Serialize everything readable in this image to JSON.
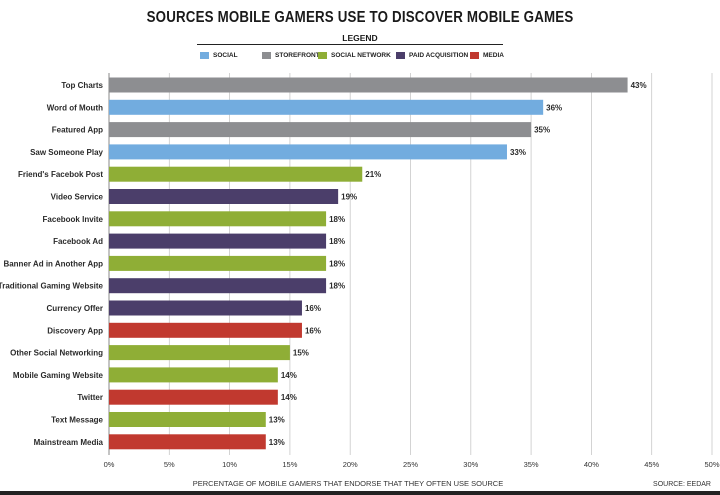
{
  "chart_data": {
    "type": "bar",
    "orientation": "horizontal",
    "title": "SOURCES MOBILE GAMERS USE TO DISCOVER MOBILE GAMES",
    "legend_title": "LEGEND",
    "legend_placement": "top",
    "xlabel": "PERCENTAGE OF MOBILE GAMERS THAT ENDORSE THAT THEY OFTEN USE SOURCE",
    "source": "SOURCE: EEDAR",
    "xlim": [
      0,
      50
    ],
    "xticks": [
      "0%",
      "5%",
      "10%",
      "15%",
      "20%",
      "25%",
      "30%",
      "35%",
      "40%",
      "45%",
      "50%"
    ],
    "grid": true,
    "series": [
      {
        "name": "SOCIAL",
        "color": "#72acdf"
      },
      {
        "name": "STOREFRONT",
        "color": "#8d8e91"
      },
      {
        "name": "SOCIAL NETWORK",
        "color": "#8fae36"
      },
      {
        "name": "PAID ACQUISITION",
        "color": "#4b3e6a"
      },
      {
        "name": "MEDIA",
        "color": "#c1392f"
      }
    ],
    "bars": [
      {
        "label": "Top Charts",
        "value": 43,
        "value_label": "43%",
        "series": "STOREFRONT"
      },
      {
        "label": "Word of Mouth",
        "value": 36,
        "value_label": "36%",
        "series": "SOCIAL"
      },
      {
        "label": "Featured App",
        "value": 35,
        "value_label": "35%",
        "series": "STOREFRONT"
      },
      {
        "label": "Saw Someone Play",
        "value": 33,
        "value_label": "33%",
        "series": "SOCIAL"
      },
      {
        "label": "Friend's Facebok Post",
        "value": 21,
        "value_label": "21%",
        "series": "SOCIAL NETWORK"
      },
      {
        "label": "Video Service",
        "value": 19,
        "value_label": "19%",
        "series": "PAID ACQUISITION"
      },
      {
        "label": "Facebook Invite",
        "value": 18,
        "value_label": "18%",
        "series": "SOCIAL NETWORK"
      },
      {
        "label": "Facebook Ad",
        "value": 18,
        "value_label": "18%",
        "series": "PAID ACQUISITION"
      },
      {
        "label": "Banner Ad in Another App",
        "value": 18,
        "value_label": "18%",
        "series": "SOCIAL NETWORK"
      },
      {
        "label": "Traditional Gaming Website",
        "value": 18,
        "value_label": "18%",
        "series": "PAID ACQUISITION"
      },
      {
        "label": "Currency Offer",
        "value": 16,
        "value_label": "16%",
        "series": "PAID ACQUISITION"
      },
      {
        "label": "Discovery App",
        "value": 16,
        "value_label": "16%",
        "series": "MEDIA"
      },
      {
        "label": "Other Social Networking",
        "value": 15,
        "value_label": "15%",
        "series": "SOCIAL NETWORK"
      },
      {
        "label": "Mobile Gaming Website",
        "value": 14,
        "value_label": "14%",
        "series": "SOCIAL NETWORK"
      },
      {
        "label": "Twitter",
        "value": 14,
        "value_label": "14%",
        "series": "MEDIA"
      },
      {
        "label": "Text Message",
        "value": 13,
        "value_label": "13%",
        "series": "SOCIAL NETWORK"
      },
      {
        "label": "Mainstream Media",
        "value": 13,
        "value_label": "13%",
        "series": "MEDIA"
      }
    ]
  }
}
